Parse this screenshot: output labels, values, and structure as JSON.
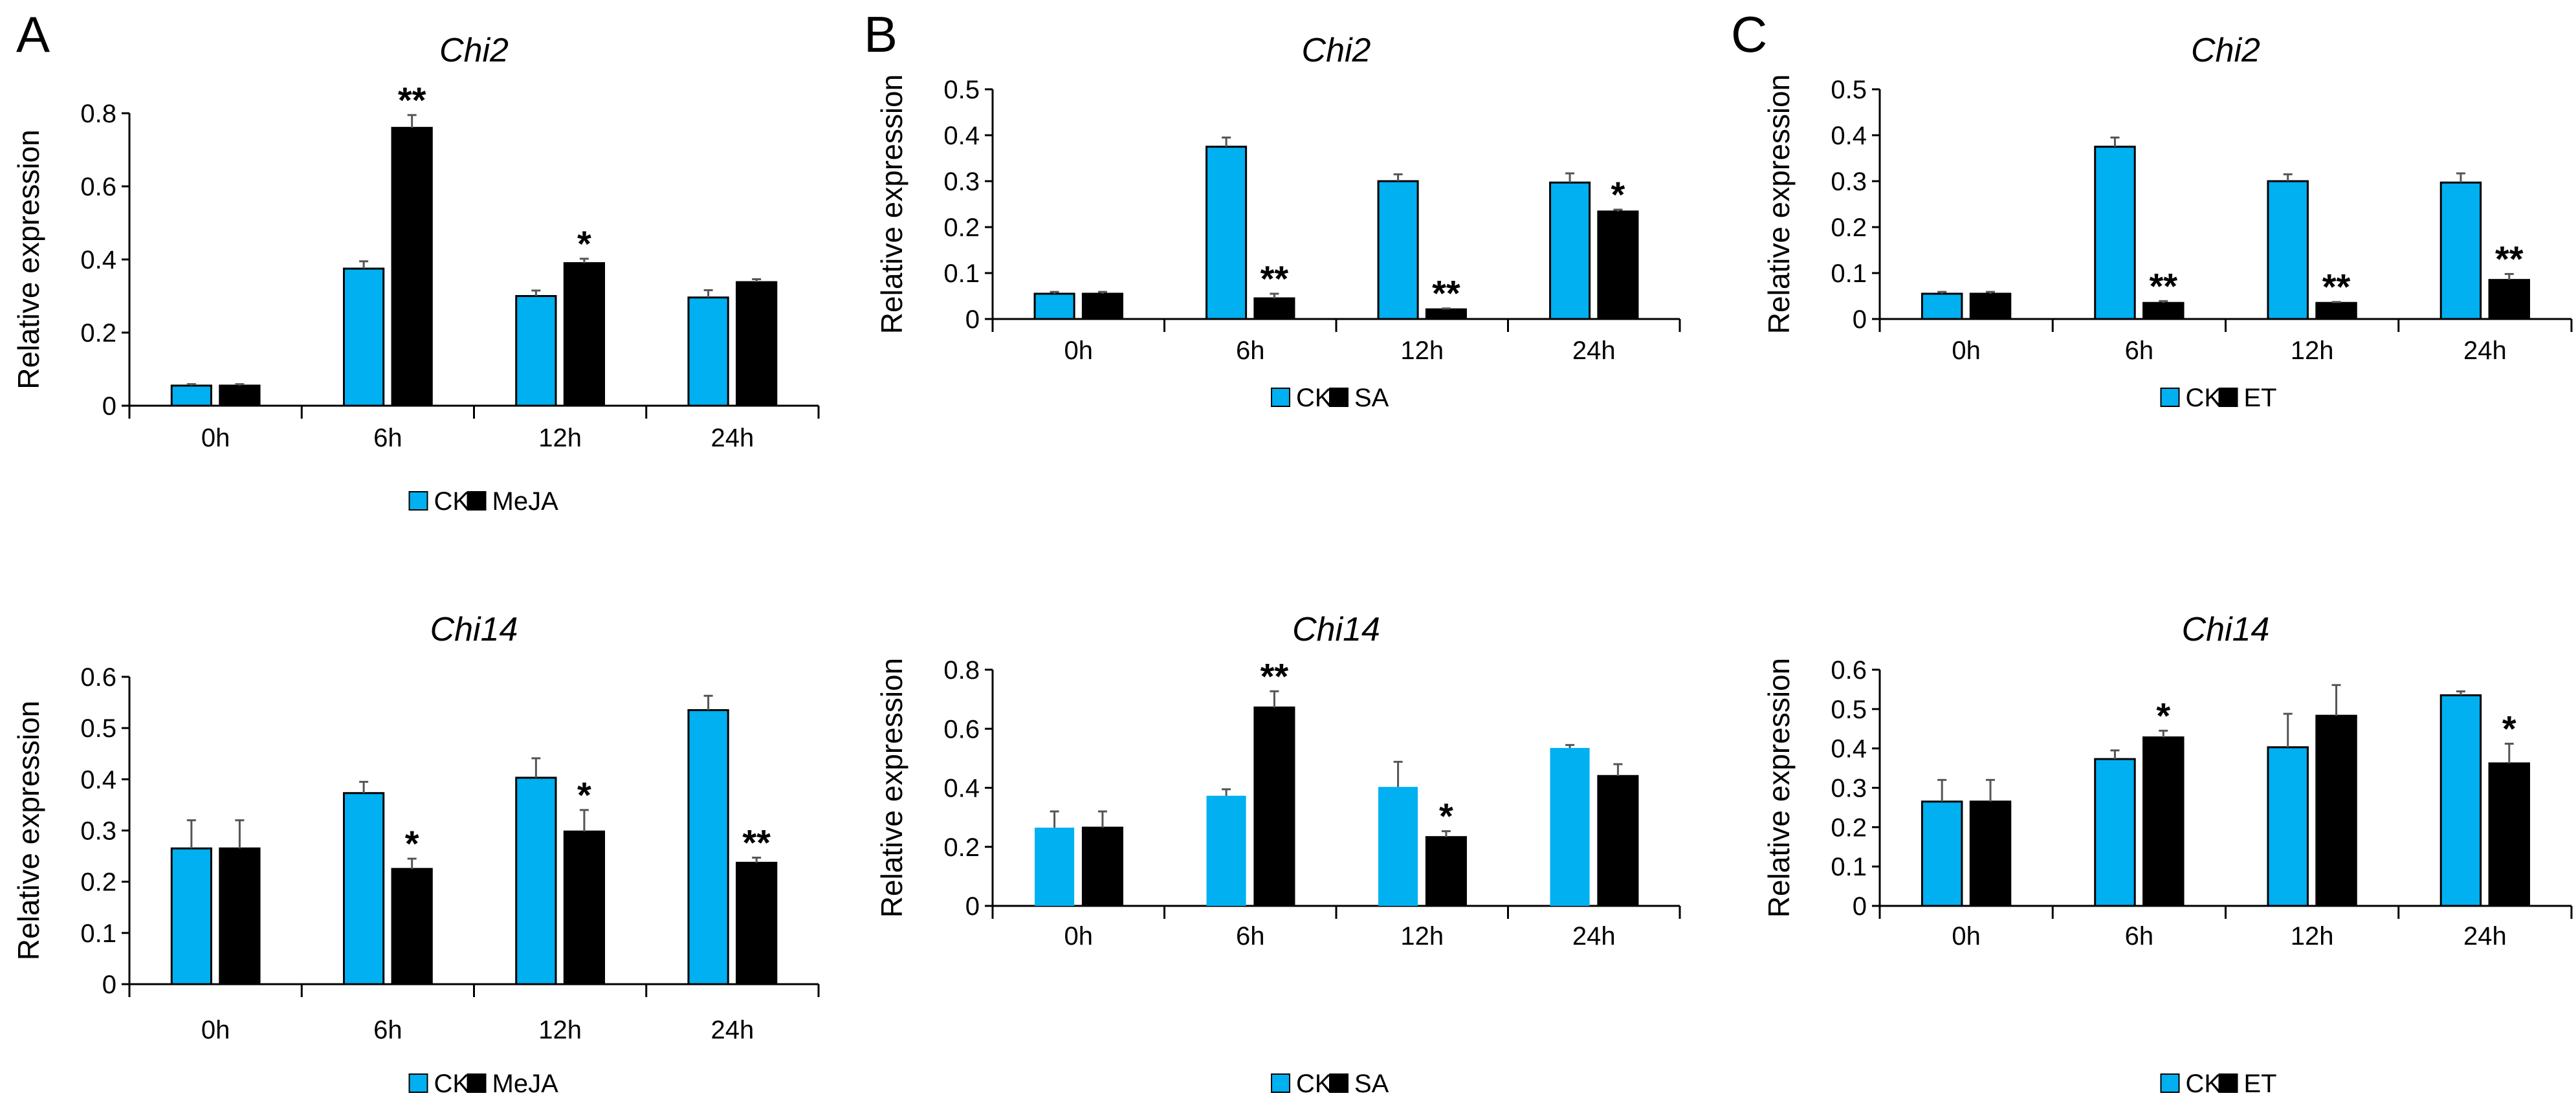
{
  "chart_data": [
    {
      "type": "bar",
      "panel": "A",
      "title": "Chi2",
      "ylabel": "Relative expression",
      "xlabel": "",
      "ylim": [
        0,
        0.8
      ],
      "yticks": [
        "0",
        "0.2",
        "0.4",
        "0.6",
        "0.8"
      ],
      "ytick_values": [
        0,
        0.2,
        0.4,
        0.6,
        0.8
      ],
      "categories": [
        "0h",
        "6h",
        "12h",
        "24h"
      ],
      "legend": "bottom-center",
      "series": [
        {
          "name": "CK",
          "color": "#00b0f0",
          "values": [
            0.055,
            0.375,
            0.3,
            0.296
          ],
          "errors": [
            0.004,
            0.02,
            0.015,
            0.02
          ]
        },
        {
          "name": "MeJA",
          "color": "#000000",
          "values": [
            0.055,
            0.76,
            0.39,
            0.338
          ],
          "errors": [
            0.004,
            0.035,
            0.012,
            0.008
          ]
        }
      ],
      "significance": [
        "",
        "**",
        "*",
        ""
      ]
    },
    {
      "type": "bar",
      "panel": "",
      "title": "Chi14",
      "ylabel": "Relative expression",
      "xlabel": "",
      "ylim": [
        0,
        0.6
      ],
      "yticks": [
        "0",
        "0.1",
        "0.2",
        "0.3",
        "0.4",
        "0.5",
        "0.6"
      ],
      "ytick_values": [
        0,
        0.1,
        0.2,
        0.3,
        0.4,
        0.5,
        0.6
      ],
      "categories": [
        "0h",
        "6h",
        "12h",
        "24h"
      ],
      "legend": "bottom-center",
      "series": [
        {
          "name": "CK",
          "color": "#00b0f0",
          "values": [
            0.265,
            0.373,
            0.403,
            0.535
          ],
          "errors": [
            0.055,
            0.022,
            0.038,
            0.028
          ]
        },
        {
          "name": "MeJA",
          "color": "#000000",
          "values": [
            0.265,
            0.225,
            0.298,
            0.237
          ],
          "errors": [
            0.055,
            0.02,
            0.042,
            0.01
          ]
        }
      ],
      "significance": [
        "",
        "*",
        "*",
        "**"
      ]
    },
    {
      "type": "bar",
      "panel": "B",
      "title": "Chi2",
      "ylabel": "Relative expression",
      "xlabel": "",
      "ylim": [
        0,
        0.5
      ],
      "yticks": [
        "0",
        "0.1",
        "0.2",
        "0.3",
        "0.4",
        "0.5"
      ],
      "ytick_values": [
        0,
        0.1,
        0.2,
        0.3,
        0.4,
        0.5
      ],
      "categories": [
        "0h",
        "6h",
        "12h",
        "24h"
      ],
      "legend": "bottom-center",
      "series": [
        {
          "name": "CK",
          "color": "#00b0f0",
          "values": [
            0.055,
            0.375,
            0.3,
            0.297
          ],
          "errors": [
            0.004,
            0.02,
            0.015,
            0.02
          ]
        },
        {
          "name": "SA",
          "color": "#000000",
          "values": [
            0.055,
            0.045,
            0.021,
            0.234
          ],
          "errors": [
            0.004,
            0.01,
            0.002,
            0.004
          ]
        }
      ],
      "significance": [
        "",
        "**",
        "**",
        "*"
      ]
    },
    {
      "type": "bar",
      "panel": "",
      "title": "Chi14",
      "ylabel": "Relative expression",
      "xlabel": "",
      "ylim": [
        0,
        0.8
      ],
      "yticks": [
        "0",
        "0.2",
        "0.4",
        "0.6",
        "0.8"
      ],
      "ytick_values": [
        0,
        0.2,
        0.4,
        0.6,
        0.8
      ],
      "categories": [
        "0h",
        "6h",
        "12h",
        "24h"
      ],
      "legend": "bottom-center",
      "series": [
        {
          "name": "CK",
          "color": "#00b0f0",
          "values": [
            0.265,
            0.373,
            0.403,
            0.535
          ],
          "errors": [
            0.055,
            0.022,
            0.085,
            0.01
          ]
        },
        {
          "name": "SA",
          "color": "#000000",
          "values": [
            0.265,
            0.672,
            0.233,
            0.44
          ],
          "errors": [
            0.055,
            0.055,
            0.02,
            0.04
          ]
        }
      ],
      "significance": [
        "",
        "**",
        "*",
        ""
      ]
    },
    {
      "type": "bar",
      "panel": "C",
      "title": "Chi2",
      "ylabel": "Relative expression",
      "xlabel": "",
      "ylim": [
        0,
        0.5
      ],
      "yticks": [
        "0",
        "0.1",
        "0.2",
        "0.3",
        "0.4",
        "0.5"
      ],
      "ytick_values": [
        0,
        0.1,
        0.2,
        0.3,
        0.4,
        0.5
      ],
      "categories": [
        "0h",
        "6h",
        "12h",
        "24h"
      ],
      "legend": "bottom-center",
      "series": [
        {
          "name": "CK",
          "color": "#00b0f0",
          "values": [
            0.055,
            0.375,
            0.3,
            0.297
          ],
          "errors": [
            0.004,
            0.02,
            0.015,
            0.02
          ]
        },
        {
          "name": "ET",
          "color": "#000000",
          "values": [
            0.055,
            0.035,
            0.035,
            0.085
          ],
          "errors": [
            0.004,
            0.004,
            0.002,
            0.013
          ]
        }
      ],
      "significance": [
        "",
        "**",
        "**",
        "**"
      ]
    },
    {
      "type": "bar",
      "panel": "",
      "title": "Chi14",
      "ylabel": "Relative expression",
      "xlabel": "",
      "ylim": [
        0,
        0.6
      ],
      "yticks": [
        "0",
        "0.1",
        "0.2",
        "0.3",
        "0.4",
        "0.5",
        "0.6"
      ],
      "ytick_values": [
        0,
        0.1,
        0.2,
        0.3,
        0.4,
        0.5,
        0.6
      ],
      "categories": [
        "0h",
        "6h",
        "12h",
        "24h"
      ],
      "legend": "bottom-center",
      "series": [
        {
          "name": "CK",
          "color": "#00b0f0",
          "values": [
            0.265,
            0.373,
            0.403,
            0.535
          ],
          "errors": [
            0.055,
            0.022,
            0.085,
            0.01
          ]
        },
        {
          "name": "ET",
          "color": "#000000",
          "values": [
            0.265,
            0.428,
            0.483,
            0.362
          ],
          "errors": [
            0.055,
            0.017,
            0.078,
            0.05
          ]
        }
      ],
      "significance": [
        "",
        "*",
        "",
        "*"
      ]
    }
  ]
}
